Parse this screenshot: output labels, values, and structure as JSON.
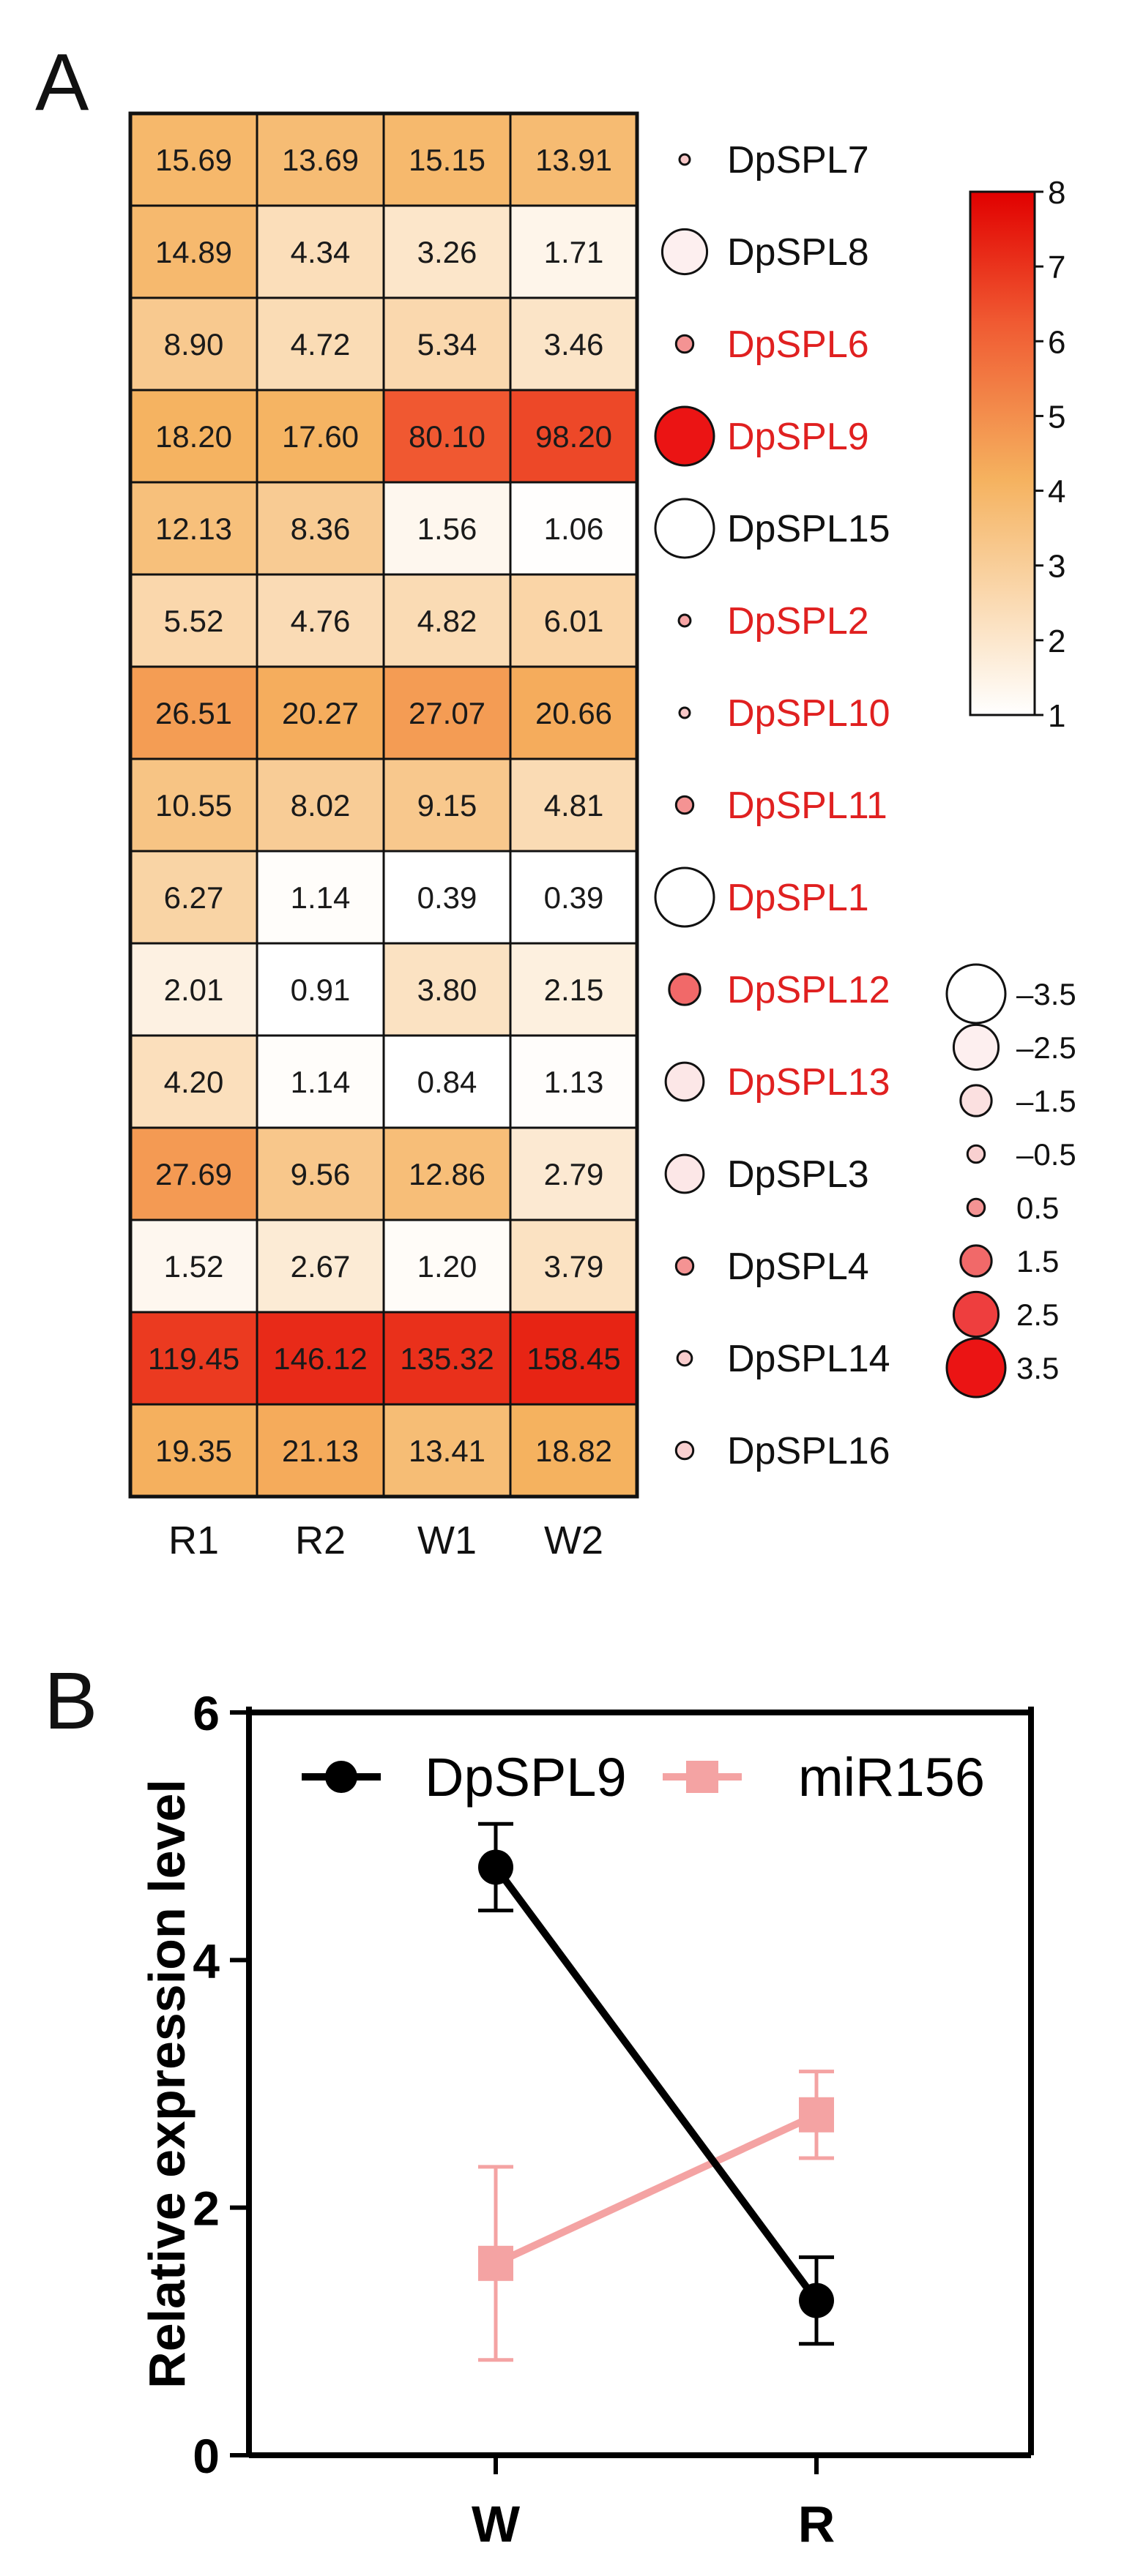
{
  "chart_data": [
    {
      "panel": "A",
      "type": "heatmap",
      "columns": [
        "R1",
        "R2",
        "W1",
        "W2"
      ],
      "rows": [
        {
          "gene": "DpSPL7",
          "values": [
            "15.69",
            "13.69",
            "15.15",
            "13.91"
          ],
          "label_color": "#111111",
          "bubble": 0.0
        },
        {
          "gene": "DpSPL8",
          "values": [
            "14.89",
            "4.34",
            "3.26",
            "1.71"
          ],
          "label_color": "#111111",
          "bubble": -2.5
        },
        {
          "gene": "DpSPL6",
          "values": [
            "8.90",
            "4.72",
            "5.34",
            "3.46"
          ],
          "label_color": "#e02020",
          "bubble": 0.5
        },
        {
          "gene": "DpSPL9",
          "values": [
            "18.20",
            "17.60",
            "80.10",
            "98.20"
          ],
          "label_color": "#e02020",
          "bubble": 3.5
        },
        {
          "gene": "DpSPL15",
          "values": [
            "12.13",
            "8.36",
            "1.56",
            "1.06"
          ],
          "label_color": "#111111",
          "bubble": -3.5
        },
        {
          "gene": "DpSPL2",
          "values": [
            "5.52",
            "4.76",
            "4.82",
            "6.01"
          ],
          "label_color": "#e02020",
          "bubble": 0.1
        },
        {
          "gene": "DpSPL10",
          "values": [
            "26.51",
            "20.27",
            "27.07",
            "20.66"
          ],
          "label_color": "#e02020",
          "bubble": 0.0
        },
        {
          "gene": "DpSPL11",
          "values": [
            "10.55",
            "8.02",
            "9.15",
            "4.81"
          ],
          "label_color": "#e02020",
          "bubble": 0.5
        },
        {
          "gene": "DpSPL1",
          "values": [
            "6.27",
            "1.14",
            "0.39",
            "0.39"
          ],
          "label_color": "#e02020",
          "bubble": -3.5
        },
        {
          "gene": "DpSPL12",
          "values": [
            "2.01",
            "0.91",
            "3.80",
            "2.15"
          ],
          "label_color": "#e02020",
          "bubble": 1.5
        },
        {
          "gene": "DpSPL13",
          "values": [
            "4.20",
            "1.14",
            "0.84",
            "1.13"
          ],
          "label_color": "#e02020",
          "bubble": -2.0
        },
        {
          "gene": "DpSPL3",
          "values": [
            "27.69",
            "9.56",
            "12.86",
            "2.79"
          ],
          "label_color": "#111111",
          "bubble": -2.0
        },
        {
          "gene": "DpSPL4",
          "values": [
            "1.52",
            "2.67",
            "1.20",
            "3.79"
          ],
          "label_color": "#111111",
          "bubble": 0.5
        },
        {
          "gene": "DpSPL14",
          "values": [
            "119.45",
            "146.12",
            "135.32",
            "158.45"
          ],
          "label_color": "#111111",
          "bubble": -0.3
        },
        {
          "gene": "DpSPL16",
          "values": [
            "19.35",
            "21.13",
            "13.41",
            "18.82"
          ],
          "label_color": "#111111",
          "bubble": -0.5
        }
      ],
      "color_scale": {
        "min": 1,
        "max": 8,
        "ticks": [
          "1",
          "2",
          "3",
          "4",
          "5",
          "6",
          "7",
          "8"
        ]
      },
      "bubble_legend": [
        "-3.5",
        "-2.5",
        "-1.5",
        "-0.5",
        "0.5",
        "1.5",
        "2.5",
        "3.5"
      ]
    },
    {
      "panel": "B",
      "type": "line",
      "categories": [
        "W",
        "R"
      ],
      "ylabel": "Relative expression level",
      "ylim": [
        0,
        6
      ],
      "yticks": [
        "0",
        "2",
        "4",
        "6"
      ],
      "series": [
        {
          "name": "DpSPL9",
          "values": [
            4.75,
            1.25
          ],
          "errors": [
            0.35,
            0.35
          ],
          "color": "#000000",
          "marker": "circle"
        },
        {
          "name": "miR156",
          "values": [
            1.55,
            2.75
          ],
          "errors": [
            0.78,
            0.35
          ],
          "color": "#f4a3a3",
          "marker": "square"
        }
      ]
    }
  ],
  "panel_labels": [
    "A",
    "B"
  ]
}
